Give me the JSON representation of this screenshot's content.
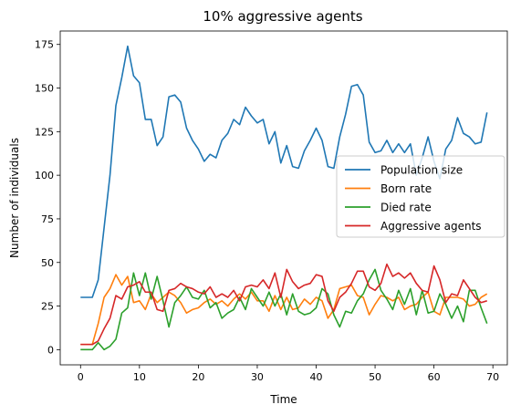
{
  "chart_data": {
    "type": "line",
    "title": "10% aggressive agents",
    "xlabel": "Time",
    "ylabel": "Number of individuals",
    "xlim": [
      -3.45,
      72.45
    ],
    "ylim": [
      -8.7,
      182.7
    ],
    "xticks": [
      0,
      10,
      20,
      30,
      40,
      50,
      60,
      70
    ],
    "yticks": [
      0,
      25,
      50,
      75,
      100,
      125,
      150,
      175
    ],
    "grid": false,
    "legend_position": "center-right",
    "x": [
      0,
      1,
      2,
      3,
      4,
      5,
      6,
      7,
      8,
      9,
      10,
      11,
      12,
      13,
      14,
      15,
      16,
      17,
      18,
      19,
      20,
      21,
      22,
      23,
      24,
      25,
      26,
      27,
      28,
      29,
      30,
      31,
      32,
      33,
      34,
      35,
      36,
      37,
      38,
      39,
      40,
      41,
      42,
      43,
      44,
      45,
      46,
      47,
      48,
      49,
      50,
      51,
      52,
      53,
      54,
      55,
      56,
      57,
      58,
      59,
      60,
      61,
      62,
      63,
      64,
      65,
      66,
      67,
      68,
      69
    ],
    "series": [
      {
        "name": "Population size",
        "color": "#1f77b4",
        "values": [
          30,
          30,
          30,
          40,
          70,
          100,
          140,
          156,
          174,
          157,
          153,
          132,
          132,
          117,
          122,
          145,
          146,
          142,
          127,
          120,
          115,
          108,
          112,
          110,
          120,
          124,
          132,
          129,
          139,
          134,
          130,
          132,
          118,
          125,
          107,
          117,
          105,
          104,
          114,
          120,
          127,
          120,
          105,
          104,
          122,
          135,
          151,
          152,
          146,
          119,
          113,
          114,
          120,
          113,
          118,
          113,
          118,
          100,
          110,
          122,
          108,
          98,
          115,
          120,
          133,
          124,
          122,
          118,
          119,
          136
        ]
      },
      {
        "name": "Born rate",
        "color": "#ff7f0e",
        "values": [
          3,
          3,
          3,
          15,
          30,
          35,
          43,
          37,
          42,
          27,
          28,
          23,
          32,
          27,
          30,
          33,
          31,
          27,
          21,
          23,
          24,
          27,
          29,
          26,
          28,
          25,
          29,
          32,
          29,
          33,
          28,
          28,
          22,
          31,
          23,
          30,
          23,
          24,
          29,
          26,
          30,
          28,
          18,
          23,
          35,
          36,
          37,
          31,
          30,
          20,
          26,
          31,
          30,
          28,
          30,
          23,
          25,
          26,
          30,
          33,
          22,
          20,
          30,
          30,
          30,
          29,
          25,
          26,
          30,
          32
        ]
      },
      {
        "name": "Died rate",
        "color": "#2ca02c",
        "values": [
          0,
          0,
          0,
          4,
          0,
          2,
          6,
          21,
          24,
          44,
          31,
          44,
          29,
          42,
          28,
          13,
          27,
          31,
          36,
          30,
          29,
          34,
          24,
          27,
          18,
          21,
          23,
          30,
          23,
          35,
          30,
          25,
          33,
          25,
          32,
          20,
          32,
          22,
          20,
          21,
          24,
          35,
          32,
          20,
          13,
          22,
          21,
          28,
          32,
          40,
          46,
          34,
          29,
          23,
          34,
          26,
          35,
          20,
          34,
          21,
          22,
          32,
          26,
          18,
          25,
          16,
          34,
          34,
          24,
          15
        ]
      },
      {
        "name": "Aggressive agents",
        "color": "#d62728",
        "values": [
          3,
          3,
          3,
          5,
          12,
          18,
          31,
          29,
          36,
          37,
          39,
          33,
          33,
          23,
          22,
          34,
          35,
          38,
          36,
          35,
          33,
          32,
          36,
          30,
          32,
          30,
          34,
          28,
          36,
          37,
          36,
          40,
          35,
          44,
          30,
          46,
          39,
          35,
          37,
          38,
          43,
          42,
          28,
          22,
          30,
          33,
          38,
          45,
          45,
          36,
          34,
          38,
          49,
          42,
          44,
          41,
          44,
          38,
          34,
          33,
          48,
          40,
          27,
          32,
          31,
          40,
          35,
          30,
          27,
          28
        ]
      }
    ]
  }
}
